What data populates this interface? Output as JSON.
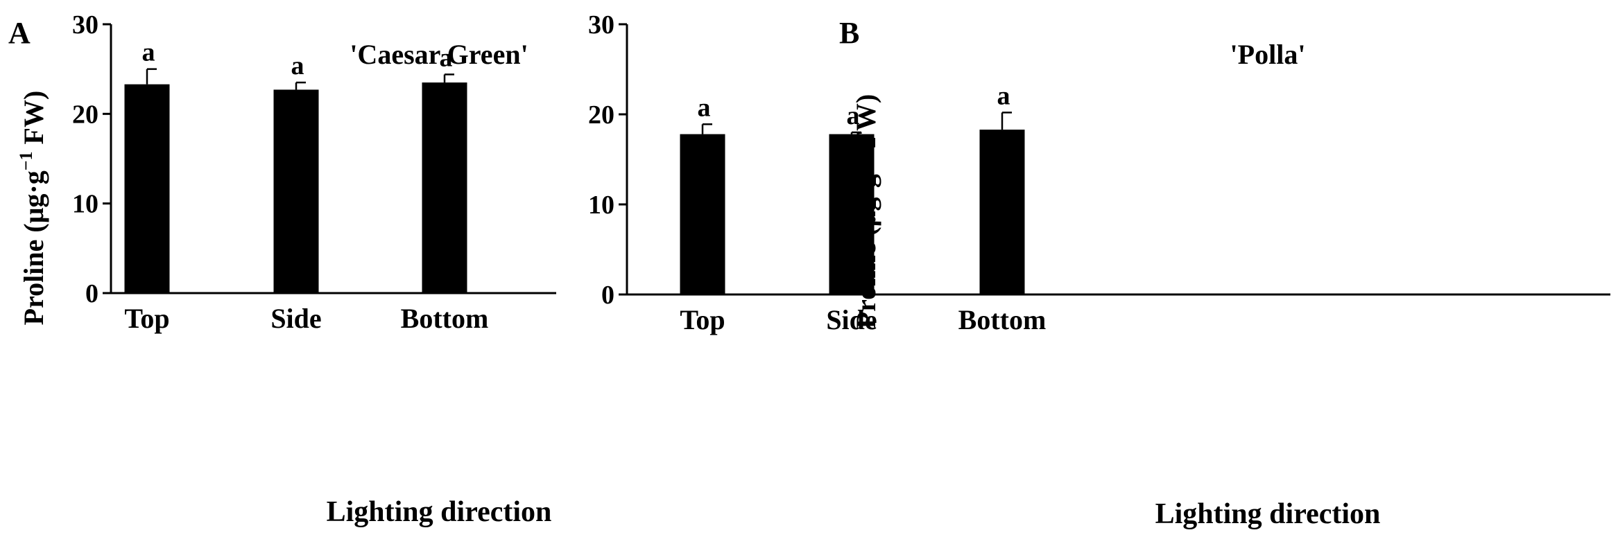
{
  "chart_data": [
    {
      "panel_label": "A",
      "type": "bar",
      "title": "'Caesar Green'",
      "xlabel": "Lighting direction",
      "ylabel_main": "Proline (μg·g",
      "ylabel_sup": "−1",
      "ylabel_end": " FW)",
      "categories": [
        "Top",
        "Side",
        "Bottom"
      ],
      "values": [
        23.3,
        22.7,
        23.5
      ],
      "errors": [
        1.7,
        0.8,
        0.9
      ],
      "significance": [
        "a",
        "a",
        "a"
      ],
      "ylim": [
        0,
        30
      ],
      "yticks": [
        0,
        10,
        20,
        30
      ],
      "ytick_labels": [
        "0",
        "10",
        "20",
        "30"
      ]
    },
    {
      "panel_label": "B",
      "type": "bar",
      "title": "'Polla'",
      "xlabel": "Lighting direction",
      "ylabel_main": "Proline (μg·g",
      "ylabel_sup": "−1",
      "ylabel_end": " FW)",
      "categories": [
        "Top",
        "Side",
        "Bottom"
      ],
      "values": [
        17.8,
        17.8,
        18.3
      ],
      "errors": [
        1.1,
        0.2,
        1.9
      ],
      "significance": [
        "a",
        "a",
        "a"
      ],
      "ylim": [
        0,
        30
      ],
      "yticks": [
        0,
        10,
        20,
        30
      ],
      "ytick_labels": [
        "0",
        "10",
        "20",
        "30"
      ]
    }
  ]
}
